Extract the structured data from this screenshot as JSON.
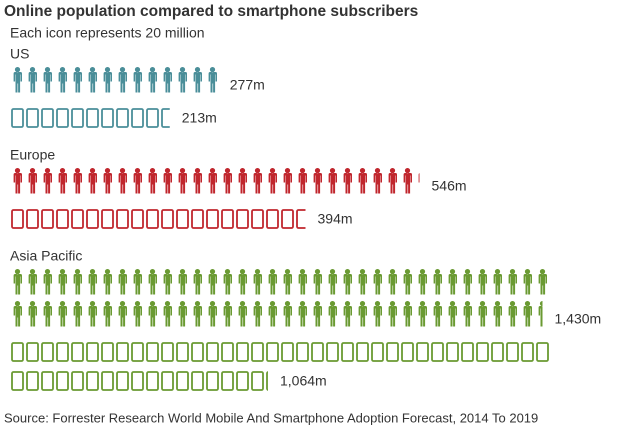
{
  "chart_data": {
    "type": "pictogram",
    "title": "Online population compared to smartphone subscribers",
    "subtitle": "Each icon represents 20 million",
    "regions": [
      {
        "name": "US",
        "color": "#4a8e99",
        "values": [
          277,
          213
        ],
        "value_labels": [
          "277m",
          "213m"
        ]
      },
      {
        "name": "Europe",
        "color": "#c0262d",
        "values": [
          546,
          394
        ],
        "value_labels": [
          "546m",
          "394m"
        ]
      },
      {
        "name": "Asia Pacific",
        "color": "#6a9a32",
        "values": [
          1430,
          1064
        ],
        "value_labels": [
          "1,430m",
          "1,064m"
        ]
      }
    ],
    "source": "Source: Forrester Research World Mobile And Smartphone Adoption Forecast, 2014 To 2019"
  }
}
